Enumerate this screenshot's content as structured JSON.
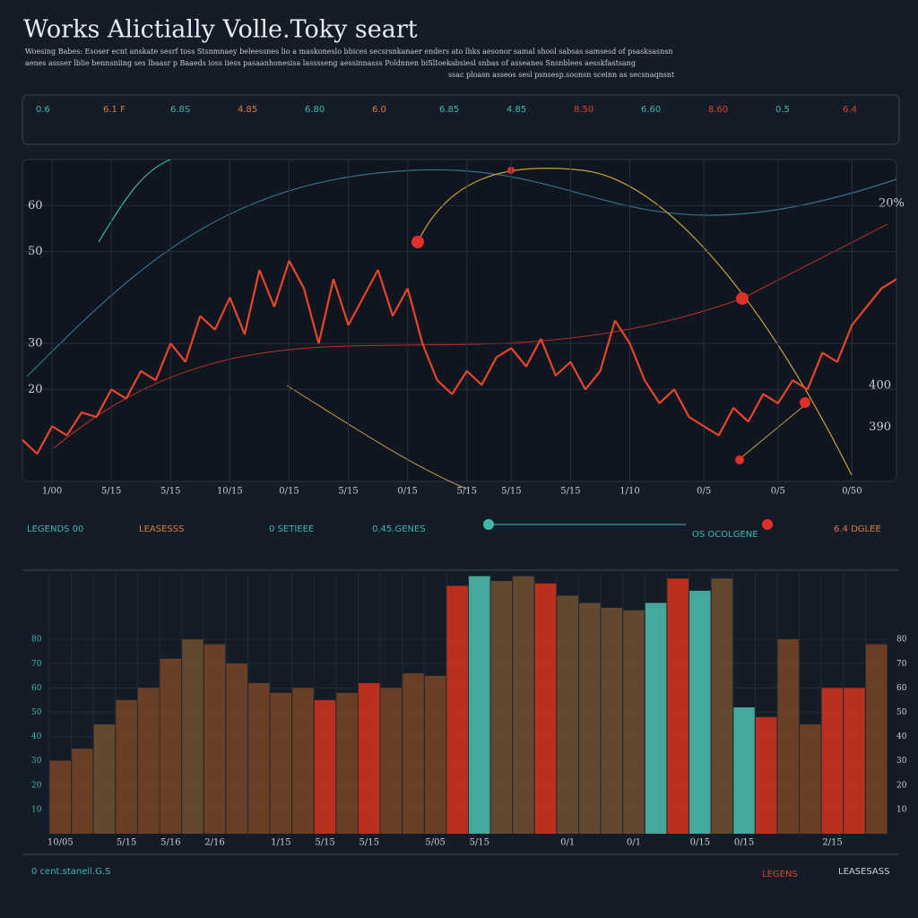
{
  "header": {
    "title": "Works Alictially Volle.Toky seart",
    "subtitle": [
      "Woesing Babes: Esoser ecnt anskate sesrf toss Stsnmnaey beleessnes lio a maskoneslo bbices secsrsnkanaer enders ato lhks aesonor samal shool sabsas samsesd of psasksasnsn",
      "aenes assser lblie bennsniing ses lbaasr p Baaeds ioss iiess pasaanhonesisa lasssseng aessinnasss Poldnnen biSlIoekabsiesl snbas of asseanes Snsnblees aesskfastsang",
      "ssac ploasn asseos sesl psnsesp.soonsn sceinn as secsnaqnsnt"
    ]
  },
  "stats": [
    [
      "0.6",
      "#3fb8a8"
    ],
    [
      "6.1 F",
      "#e07a3a"
    ],
    [
      "6.8S",
      "#3fb8a8"
    ],
    [
      "4.85",
      "#e07a3a"
    ],
    [
      "6.80",
      "#3fb8a8"
    ],
    [
      "6.0",
      "#e07a3a"
    ],
    [
      "6.85",
      "#3fb8a8"
    ],
    [
      "4.85",
      "#3fb8a8"
    ],
    [
      "8.50",
      "#e0402a"
    ],
    [
      "6.60",
      "#3fb8a8"
    ],
    [
      "8.60",
      "#e0402a"
    ],
    [
      "0.5",
      "#3fb8a8"
    ],
    [
      "6.4",
      "#e0402a"
    ]
  ],
  "legend_row": [
    "LEGENDS 00",
    "LEASESSS",
    "0 SETIEEE",
    "0.45.GENES",
    "OS OCOLGENE",
    "6.4 DGLEE"
  ],
  "footer": [
    "0 cent.stanell.G.S",
    "LEGENS",
    "LEASESASS"
  ],
  "chart_data": [
    {
      "type": "line",
      "annotations": [
        "20%"
      ],
      "x": [
        0,
        1,
        2,
        3,
        4,
        5,
        6,
        7,
        8,
        9,
        10,
        11,
        12,
        13,
        14,
        15,
        16,
        17,
        18,
        19,
        20,
        21,
        22,
        23,
        24,
        25,
        26,
        27,
        28,
        29,
        30,
        31,
        32,
        33,
        34,
        35,
        36,
        37,
        38,
        39,
        40,
        41,
        42,
        43,
        44,
        45,
        46,
        47,
        48,
        49,
        50,
        51,
        52,
        53,
        54,
        55,
        56,
        57,
        58,
        59
      ],
      "xlim": [
        0,
        59
      ],
      "xticks": [
        {
          "value": 2,
          "label": "1/00"
        },
        {
          "value": 6,
          "label": "5/15"
        },
        {
          "value": 10,
          "label": "5/15"
        },
        {
          "value": 14,
          "label": "10/15"
        },
        {
          "value": 18,
          "label": "0/15"
        },
        {
          "value": 22,
          "label": "5/15"
        },
        {
          "value": 26,
          "label": "0/15"
        },
        {
          "value": 30,
          "label": "5/15"
        },
        {
          "value": 33,
          "label": "5/15"
        },
        {
          "value": 37,
          "label": "5/15"
        },
        {
          "value": 41,
          "label": "1/10"
        },
        {
          "value": 46,
          "label": "0/5"
        },
        {
          "value": 51,
          "label": "0/5"
        },
        {
          "value": 56,
          "label": "0/50"
        }
      ],
      "ylim": [
        0,
        70
      ],
      "yticks": [
        60,
        50,
        30,
        20
      ],
      "y2lim": [
        377,
        454
      ],
      "y2ticks": [
        400,
        390
      ],
      "grid": true,
      "series": [
        {
          "color": "#e8452a",
          "values": [
            9,
            6,
            12,
            10,
            15,
            14,
            20,
            18,
            24,
            22,
            30,
            26,
            36,
            33,
            40,
            32,
            46,
            38,
            48,
            42,
            30,
            44,
            34,
            40,
            46,
            36,
            42,
            30,
            22,
            19,
            24,
            21,
            27,
            29,
            25,
            31,
            23,
            26,
            20,
            24,
            35,
            30,
            22,
            17,
            20,
            14,
            12,
            10,
            16,
            13,
            19,
            17,
            22,
            20,
            28,
            26,
            34,
            38,
            42,
            44
          ]
        }
      ]
    },
    {
      "type": "bar",
      "categories": [
        "10/05",
        null,
        null,
        "5/15",
        null,
        "5/16",
        null,
        "2/16",
        null,
        null,
        "1/15",
        null,
        "5/15",
        null,
        "5/15",
        null,
        null,
        "5/05",
        null,
        "5/15",
        null,
        null,
        null,
        "0/1",
        null,
        null,
        "0/1",
        null,
        null,
        "0/15",
        null,
        "0/15",
        null,
        null,
        null,
        "2/15",
        null,
        null
      ],
      "values": [
        30,
        35,
        45,
        55,
        60,
        72,
        80,
        78,
        70,
        62,
        58,
        60,
        55,
        58,
        62,
        60,
        66,
        65,
        102,
        106,
        104,
        106,
        103,
        98,
        95,
        93,
        92,
        95,
        105,
        100,
        105,
        52,
        48,
        80,
        45,
        60,
        60,
        78
      ],
      "colors": [
        "#7a4526",
        "#7a4526",
        "#6f5030",
        "#7a4526",
        "#7a4526",
        "#7a4526",
        "#6f5030",
        "#7a4526",
        "#7a4526",
        "#7a4526",
        "#7a4526",
        "#7a4526",
        "#d8321e",
        "#7a4526",
        "#d8321e",
        "#7a4526",
        "#7a4526",
        "#7a4526",
        "#d8321e",
        "#4fbfb0",
        "#6f5030",
        "#6f5030",
        "#d8321e",
        "#6f5030",
        "#6f5030",
        "#6f5030",
        "#6f5030",
        "#4fbfb0",
        "#d8321e",
        "#4fbfb0",
        "#6f5030",
        "#4fbfb0",
        "#d8321e",
        "#7a4526",
        "#7a4526",
        "#d8321e",
        "#d8321e",
        "#7a4526"
      ],
      "ylim": [
        0,
        107
      ],
      "yticks": [
        80,
        70,
        60,
        50,
        40,
        30,
        20,
        10
      ],
      "grid": true
    }
  ]
}
